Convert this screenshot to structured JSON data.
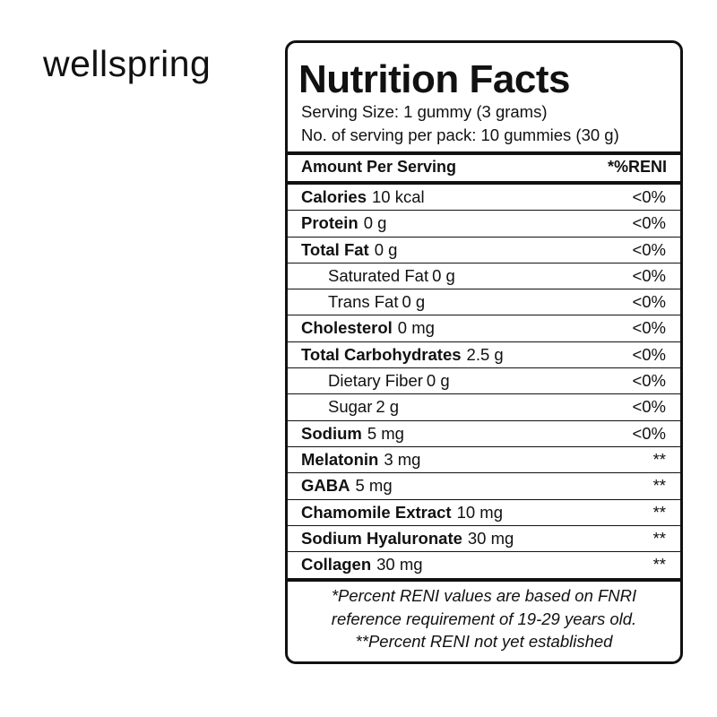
{
  "brand": "wellspring",
  "label": {
    "title": "Nutrition Facts",
    "serving_size": "Serving Size: 1 gummy (3 grams)",
    "servings_per_pack": "No. of serving per pack: 10 gummies (30 g)",
    "header": {
      "left": "Amount Per Serving",
      "right": "*%RENI"
    },
    "rows": [
      {
        "name": "Calories",
        "amount": "10 kcal",
        "reni": "<0%"
      },
      {
        "name": "Protein",
        "amount": "0 g",
        "reni": "<0%"
      },
      {
        "name": "Total Fat",
        "amount": "0 g",
        "reni": "<0%"
      },
      {
        "name": "Saturated Fat",
        "amount": "0 g",
        "reni": "<0%",
        "sub": true
      },
      {
        "name": "Trans Fat",
        "amount": "0 g",
        "reni": "<0%",
        "sub": true
      },
      {
        "name": "Cholesterol",
        "amount": "0 mg",
        "reni": "<0%"
      },
      {
        "name": "Total Carbohydrates",
        "amount": "2.5 g",
        "reni": "<0%"
      },
      {
        "name": "Dietary Fiber",
        "amount": "0 g",
        "reni": "<0%",
        "sub": true
      },
      {
        "name": "Sugar",
        "amount": "2 g",
        "reni": "<0%",
        "sub": true
      },
      {
        "name": "Sodium",
        "amount": "5 mg",
        "reni": "<0%"
      },
      {
        "name": "Melatonin",
        "amount": "3 mg",
        "reni": "**"
      },
      {
        "name": "GABA",
        "amount": "5 mg",
        "reni": "**"
      },
      {
        "name": "Chamomile Extract",
        "amount": "10 mg",
        "reni": "**"
      },
      {
        "name": "Sodium Hyaluronate",
        "amount": "30 mg",
        "reni": "**"
      },
      {
        "name": "Collagen",
        "amount": "30 mg",
        "reni": "**"
      }
    ],
    "footnotes": [
      "*Percent RENI values are based on FNRI",
      "reference requirement of 19-29 years old.",
      "**Percent RENI not yet established"
    ]
  }
}
